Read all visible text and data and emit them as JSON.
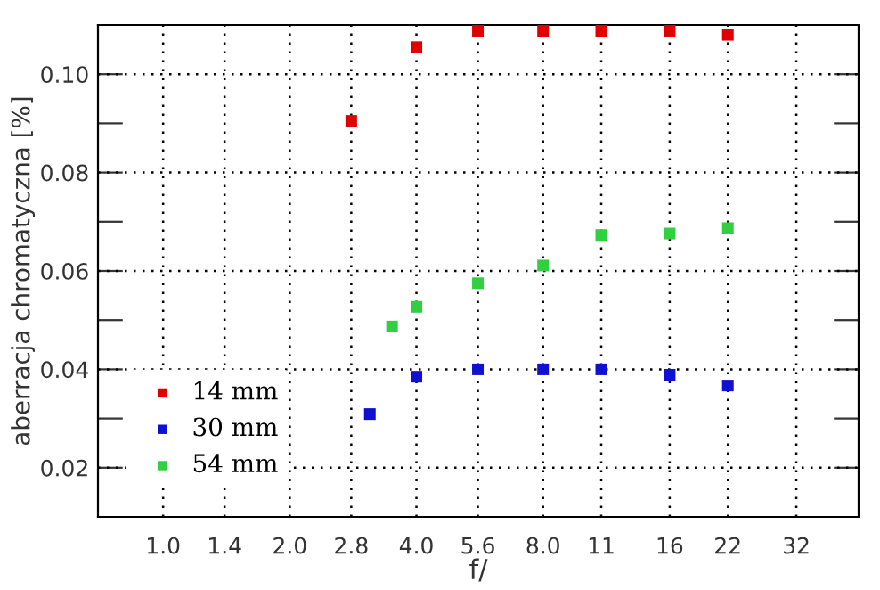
{
  "chart_data": {
    "type": "scatter",
    "xlabel": "f/",
    "ylabel": "aberracja chromatyczna [%]",
    "log": "x",
    "xlim": [
      0.7,
      45
    ],
    "ylim": [
      0.01,
      0.11
    ],
    "xticks": [
      {
        "value": 1.0,
        "label": "1.0"
      },
      {
        "value": 1.4,
        "label": "1.4"
      },
      {
        "value": 2.0,
        "label": "2.0"
      },
      {
        "value": 2.8,
        "label": "2.8"
      },
      {
        "value": 4.0,
        "label": "4.0"
      },
      {
        "value": 5.6,
        "label": "5.6"
      },
      {
        "value": 8.0,
        "label": "8.0"
      },
      11,
      16,
      22,
      32
    ],
    "yticks": [
      {
        "value": 0.02,
        "label": "0.02"
      },
      {
        "value": 0.03,
        "label": null
      },
      {
        "value": 0.04,
        "label": "0.04"
      },
      {
        "value": 0.05,
        "label": null
      },
      {
        "value": 0.06,
        "label": "0.06"
      },
      {
        "value": 0.07,
        "label": null
      },
      {
        "value": 0.08,
        "label": "0.08"
      },
      {
        "value": 0.09,
        "label": null
      },
      {
        "value": 0.1,
        "label": "0.10"
      }
    ],
    "grid": true,
    "legend": "bottom left",
    "marker": "square",
    "series": [
      {
        "name": "14 mm",
        "color": "#e00000",
        "x": [
          2.8,
          4.0,
          5.6,
          8.0,
          11,
          16,
          22
        ],
        "values": [
          0.0905,
          0.1055,
          0.1088,
          0.1088,
          0.1088,
          0.1088,
          0.108
        ]
      },
      {
        "name": "30 mm",
        "color": "#1010d0",
        "x": [
          3.1,
          4.0,
          5.6,
          8.0,
          11,
          16,
          22
        ],
        "values": [
          0.0309,
          0.0385,
          0.04,
          0.04,
          0.04,
          0.0389,
          0.0367
        ]
      },
      {
        "name": "54 mm",
        "color": "#30d040",
        "x": [
          3.5,
          4.0,
          5.6,
          8.0,
          11,
          16,
          22
        ],
        "values": [
          0.0487,
          0.0527,
          0.0575,
          0.0611,
          0.0673,
          0.0676,
          0.0687
        ]
      }
    ]
  }
}
